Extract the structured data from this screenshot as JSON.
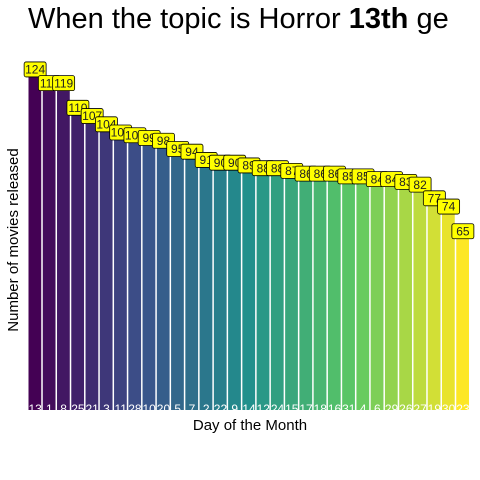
{
  "chart_data": {
    "type": "bar",
    "title": "When the topic is Horror ",
    "title_bold": "13th",
    "title_rest": "ge",
    "xlabel": "Day of the Month",
    "ylabel": "Number of movies released",
    "categories": [
      "13",
      "1",
      "8",
      "25",
      "21",
      "3",
      "11",
      "28",
      "10",
      "20",
      "5",
      "7",
      "2",
      "22",
      "9",
      "14",
      "12",
      "24",
      "15",
      "17",
      "18",
      "16",
      "31",
      "4",
      "6",
      "29",
      "26",
      "27",
      "19",
      "30",
      "23"
    ],
    "values": [
      124,
      119,
      119,
      110,
      107,
      104,
      101,
      100,
      99,
      98,
      95,
      94,
      91,
      90,
      90,
      89,
      88,
      88,
      87,
      86,
      86,
      86,
      85,
      85,
      84,
      84,
      83,
      82,
      77,
      74,
      65
    ],
    "palette": [
      "#440154",
      "#3b528b",
      "#21908c",
      "#5dc963",
      "#fde725"
    ],
    "label_fill": "#ffff00",
    "ylim": [
      0,
      132
    ]
  }
}
